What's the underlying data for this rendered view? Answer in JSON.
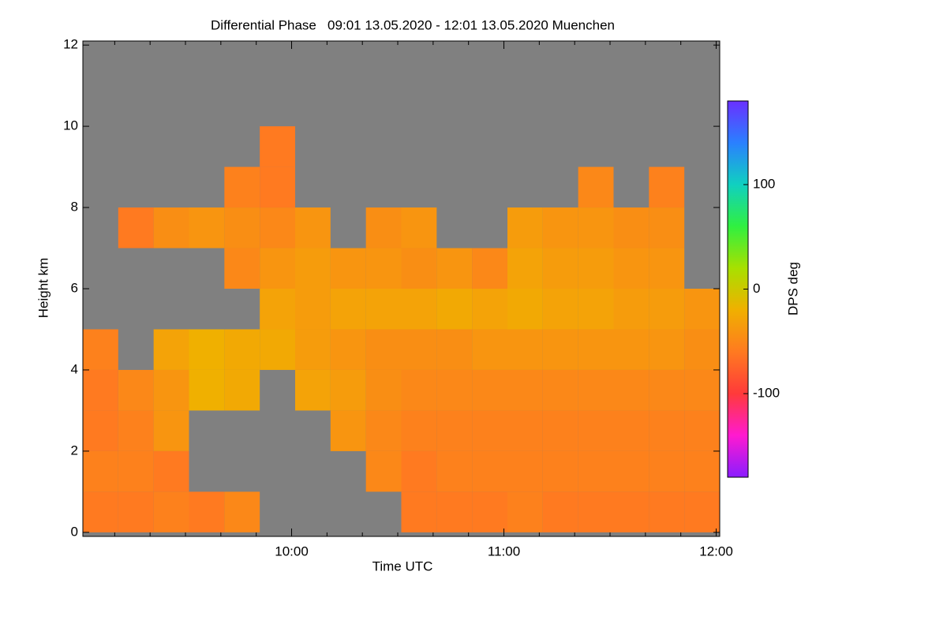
{
  "chart_data": {
    "type": "heatmap",
    "title": "Differential Phase   09:01 13.05.2020 - 12:01 13.05.2020 Muenchen",
    "x_label": "Time UTC",
    "y_label": "Height km",
    "colorbar_label": "DPS deg",
    "x": [
      546,
      556,
      566,
      576,
      586,
      596,
      606,
      616,
      626,
      636,
      646,
      656,
      666,
      676,
      686,
      696,
      706,
      716
    ],
    "y": [
      0.5,
      1.5,
      2.5,
      3.5,
      4.5,
      5.5,
      6.5,
      7.5,
      8.5,
      9.5
    ],
    "values": [
      [
        -60,
        -60,
        -55,
        -60,
        -50,
        null,
        null,
        null,
        null,
        -60,
        -60,
        -60,
        -55,
        -60,
        -60,
        -60,
        -60,
        -60
      ],
      [
        -55,
        -55,
        -60,
        null,
        null,
        null,
        null,
        null,
        -50,
        -60,
        -55,
        -55,
        -55,
        -55,
        -55,
        -55,
        -55,
        -55
      ],
      [
        -60,
        -55,
        -40,
        null,
        null,
        null,
        null,
        -40,
        -50,
        -55,
        -55,
        -55,
        -55,
        -55,
        -55,
        -55,
        -55,
        -55
      ],
      [
        -60,
        -50,
        -40,
        -20,
        -25,
        null,
        -30,
        -35,
        -45,
        -50,
        -50,
        -50,
        -50,
        -50,
        -50,
        -50,
        -50,
        -50
      ],
      [
        -55,
        null,
        -30,
        -20,
        -25,
        -25,
        -35,
        -40,
        -45,
        -45,
        -45,
        -40,
        -40,
        -40,
        -40,
        -40,
        -40,
        -45
      ],
      [
        null,
        null,
        null,
        null,
        null,
        -30,
        -35,
        -30,
        -30,
        -30,
        -25,
        -30,
        -25,
        -30,
        -30,
        -35,
        -35,
        -40
      ],
      [
        null,
        null,
        null,
        null,
        -50,
        -40,
        -35,
        -40,
        -40,
        -45,
        -40,
        -50,
        -30,
        -35,
        -35,
        -40,
        -40,
        null
      ],
      [
        null,
        -60,
        -45,
        -40,
        -45,
        -50,
        -40,
        null,
        -45,
        -40,
        null,
        null,
        -35,
        -40,
        -40,
        -45,
        -45,
        null
      ],
      [
        null,
        null,
        null,
        null,
        -55,
        -60,
        null,
        null,
        null,
        null,
        null,
        null,
        null,
        null,
        -50,
        null,
        -55,
        null
      ],
      [
        null,
        null,
        null,
        null,
        null,
        -60,
        null,
        null,
        null,
        null,
        null,
        null,
        null,
        null,
        null,
        null,
        null,
        null
      ]
    ],
    "xlim": [
      541,
      721
    ],
    "xticks": [
      {
        "value": 600,
        "label": "10:00"
      },
      {
        "value": 660,
        "label": "11:00"
      },
      {
        "value": 720,
        "label": "12:00"
      }
    ],
    "xminorticks": [
      550,
      560,
      570,
      580,
      590,
      610,
      620,
      630,
      640,
      650,
      670,
      680,
      690,
      700,
      710
    ],
    "ylim": [
      -0.1,
      12.1
    ],
    "yticks": [
      0,
      2,
      4,
      6,
      8,
      10,
      12
    ],
    "zlim": [
      -180,
      180
    ],
    "zticks": [
      -100,
      0,
      100
    ],
    "colormap": [
      "#8a1cff",
      "#ff1ad0",
      "#ff3a3a",
      "#ff7a20",
      "#f0b000",
      "#a8e000",
      "#30f040",
      "#10d0c0",
      "#2a80ff",
      "#6a30ff"
    ],
    "background": "#808080"
  }
}
